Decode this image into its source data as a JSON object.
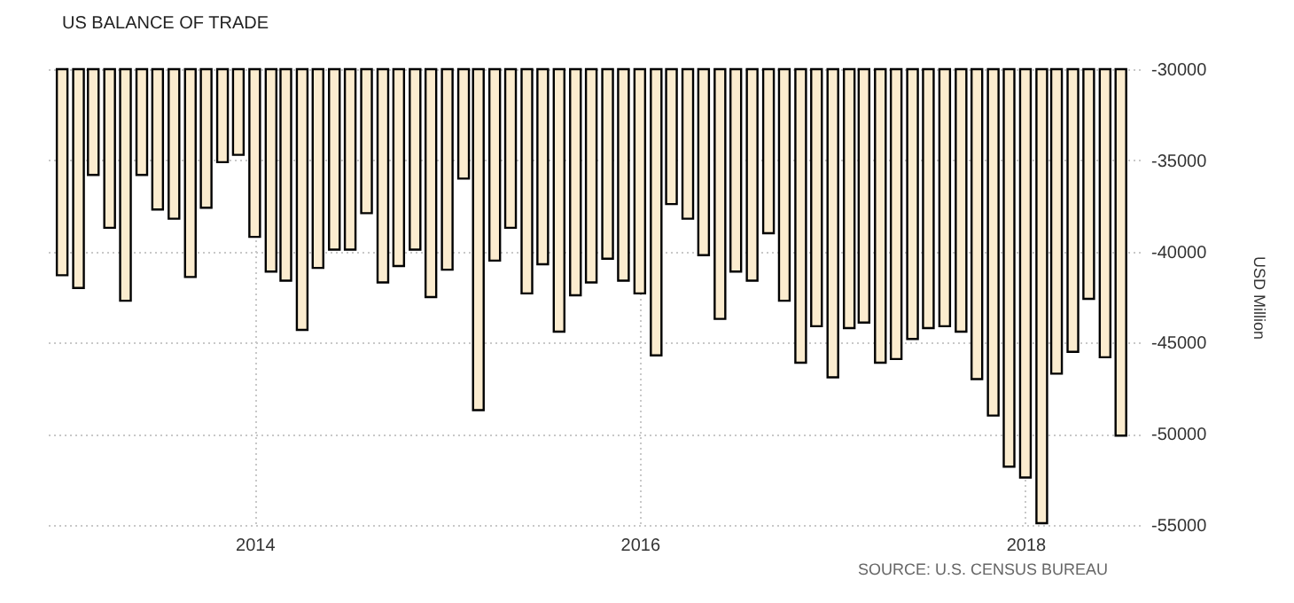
{
  "chart_data": {
    "type": "bar",
    "title": "US BALANCE OF TRADE",
    "ylabel": "USD Million",
    "annotations": [
      "SOURCE: U.S. CENSUS BUREAU"
    ],
    "x": [
      "2013-01",
      "2013-02",
      "2013-03",
      "2013-04",
      "2013-05",
      "2013-06",
      "2013-07",
      "2013-08",
      "2013-09",
      "2013-10",
      "2013-11",
      "2013-12",
      "2014-01",
      "2014-02",
      "2014-03",
      "2014-04",
      "2014-05",
      "2014-06",
      "2014-07",
      "2014-08",
      "2014-09",
      "2014-10",
      "2014-11",
      "2014-12",
      "2015-01",
      "2015-02",
      "2015-03",
      "2015-04",
      "2015-05",
      "2015-06",
      "2015-07",
      "2015-08",
      "2015-09",
      "2015-10",
      "2015-11",
      "2015-12",
      "2016-01",
      "2016-02",
      "2016-03",
      "2016-04",
      "2016-05",
      "2016-06",
      "2016-07",
      "2016-08",
      "2016-09",
      "2016-10",
      "2016-11",
      "2016-12",
      "2017-01",
      "2017-02",
      "2017-03",
      "2017-04",
      "2017-05",
      "2017-06",
      "2017-07",
      "2017-08",
      "2017-09",
      "2017-10",
      "2017-11",
      "2017-12",
      "2018-01",
      "2018-02",
      "2018-03",
      "2018-04",
      "2018-05",
      "2018-06",
      "2018-07"
    ],
    "values": [
      -41300,
      -42000,
      -35800,
      -38700,
      -42700,
      -35800,
      -37700,
      -38200,
      -41400,
      -37600,
      -35100,
      -34700,
      -39200,
      -41100,
      -41600,
      -44300,
      -40900,
      -39900,
      -39900,
      -37900,
      -41700,
      -40800,
      -39900,
      -42500,
      -41000,
      -36000,
      -48700,
      -40500,
      -38700,
      -42300,
      -40700,
      -44400,
      -42400,
      -41700,
      -40400,
      -41600,
      -42300,
      -45700,
      -37400,
      -38200,
      -40200,
      -43700,
      -41100,
      -41600,
      -39000,
      -42700,
      -46100,
      -44100,
      -46900,
      -44200,
      -43900,
      -46100,
      -45900,
      -44800,
      -44200,
      -44100,
      -44400,
      -47000,
      -49000,
      -51800,
      -52400,
      -54900,
      -46700,
      -45500,
      -42600,
      -45800,
      -50100
    ],
    "color": "#fbeccf",
    "xlim": [
      "2012-12-15",
      "2018-07-20"
    ],
    "xticks": [
      "2014",
      "2016",
      "2018"
    ],
    "ylim": [
      -55000,
      -30000
    ],
    "yticks": [
      -55000,
      -50000,
      -45000,
      -40000,
      -35000,
      -30000
    ],
    "grid": true
  }
}
